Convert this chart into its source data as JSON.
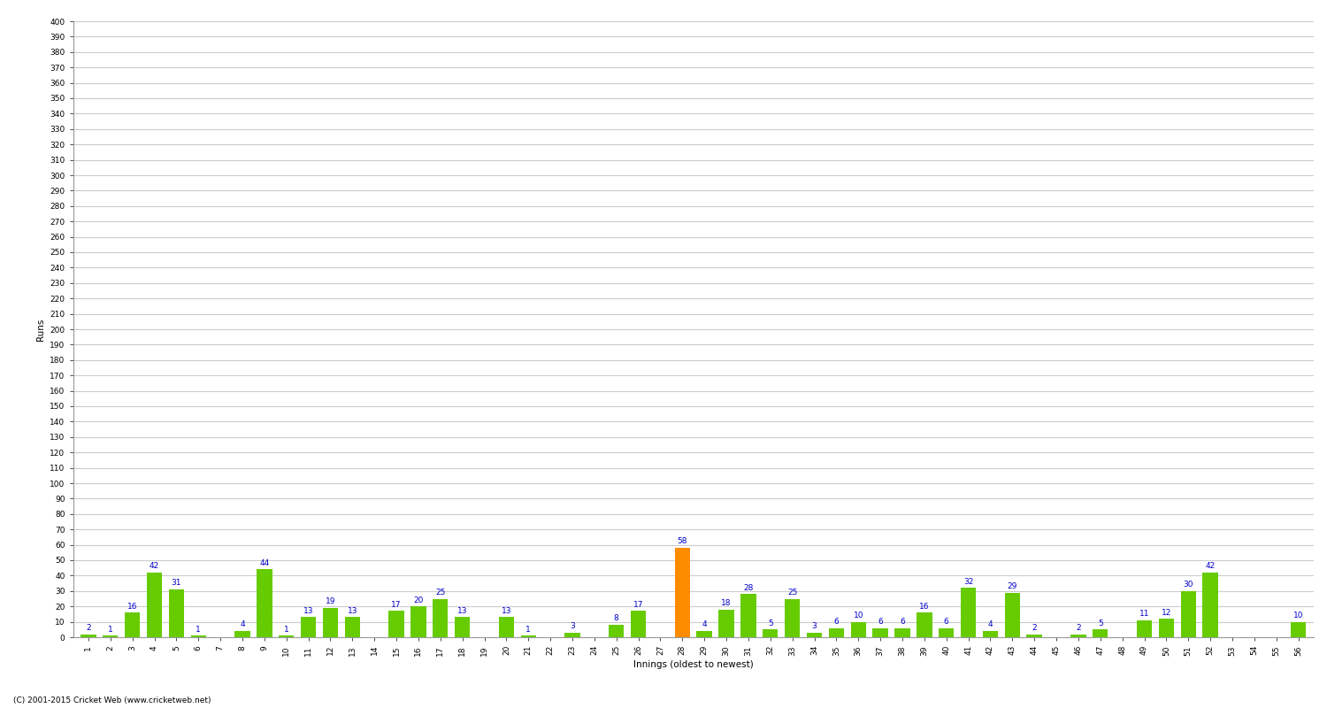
{
  "xlabel": "Innings (oldest to newest)",
  "ylabel": "Runs",
  "values": [
    2,
    1,
    16,
    42,
    31,
    1,
    0,
    4,
    44,
    1,
    13,
    19,
    13,
    0,
    17,
    20,
    25,
    13,
    0,
    13,
    1,
    0,
    3,
    0,
    8,
    17,
    0,
    58,
    4,
    18,
    28,
    5,
    25,
    3,
    6,
    10,
    6,
    6,
    16,
    6,
    32,
    4,
    29,
    2,
    0,
    2,
    5,
    0,
    11,
    12,
    30,
    42,
    0,
    0,
    0,
    10
  ],
  "not_out": [
    false,
    false,
    false,
    false,
    false,
    false,
    false,
    false,
    false,
    false,
    false,
    false,
    false,
    false,
    false,
    false,
    false,
    false,
    false,
    false,
    false,
    false,
    false,
    false,
    false,
    false,
    false,
    true,
    false,
    false,
    false,
    false,
    false,
    false,
    false,
    false,
    false,
    false,
    false,
    false,
    false,
    false,
    false,
    false,
    false,
    false,
    false,
    false,
    false,
    false,
    false,
    false,
    false,
    false,
    false,
    false
  ],
  "green_color": "#66CC00",
  "orange_color": "#FF8C00",
  "label_color": "#0000CC",
  "background_color": "#FFFFFF",
  "grid_color": "#CCCCCC",
  "label_fontsize": 6.5,
  "tick_fontsize": 6.5,
  "ylabel_fontsize": 7.5,
  "footer": "(C) 2001-2015 Cricket Web (www.cricketweb.net)",
  "ylim": [
    0,
    400
  ],
  "ytick_step": 10
}
